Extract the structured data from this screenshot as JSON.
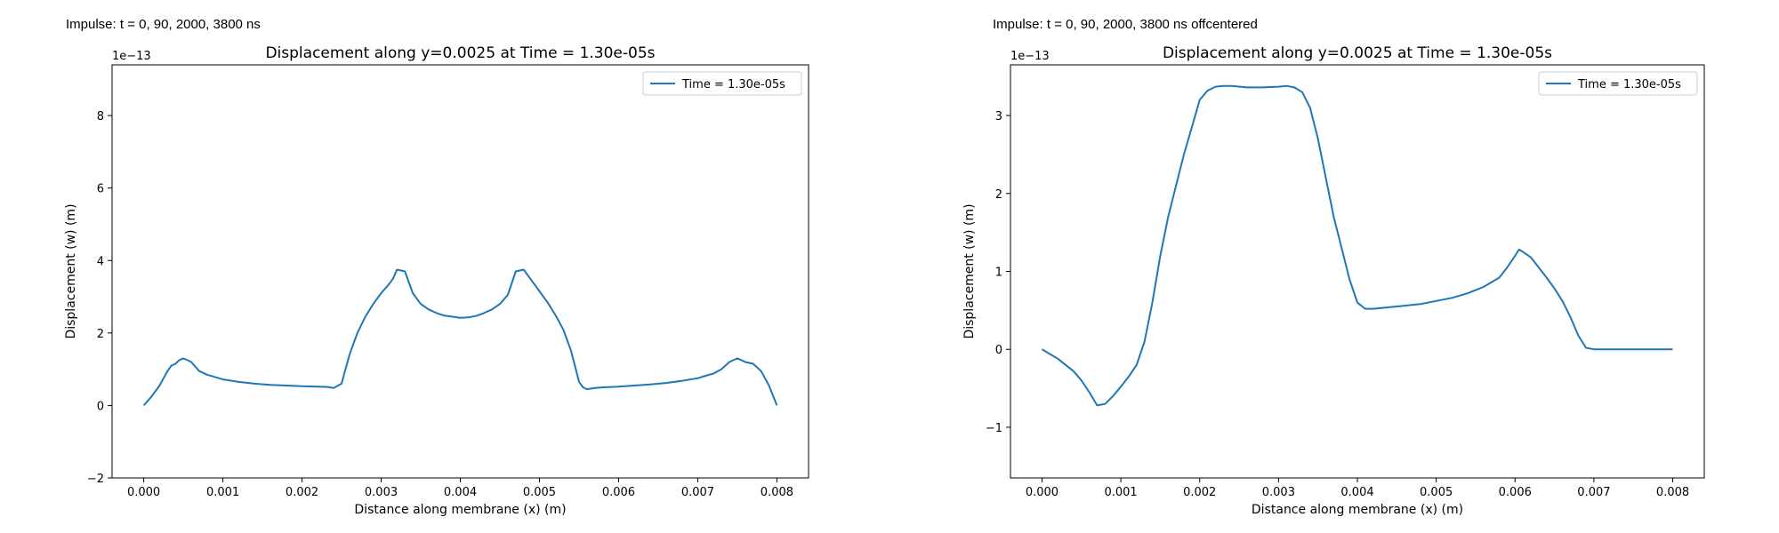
{
  "panels": [
    {
      "caption": "Impulse: t = 0, 90, 2000, 3800 ns"
    },
    {
      "caption": "Impulse: t = 0, 90, 2000, 3800 ns offcentered"
    }
  ],
  "chart_data": [
    {
      "type": "line",
      "title": "Displacement along y=0.0025 at Time = 1.30e-05s",
      "xlabel": "Distance along membrane (x) (m)",
      "ylabel": "Displacement (w) (m)",
      "offset_label": "1e−13",
      "xlim": [
        -0.0004,
        0.0084
      ],
      "ylim": [
        -2,
        9.4
      ],
      "xticks": [
        0.0,
        0.001,
        0.002,
        0.003,
        0.004,
        0.005,
        0.006,
        0.007,
        0.008
      ],
      "xtick_labels": [
        "0.000",
        "0.001",
        "0.002",
        "0.003",
        "0.004",
        "0.005",
        "0.006",
        "0.007",
        "0.008"
      ],
      "yticks": [
        -2,
        0,
        2,
        4,
        6,
        8
      ],
      "ytick_labels": [
        "−2",
        "0",
        "2",
        "4",
        "6",
        "8"
      ],
      "grid": false,
      "legend": "top-right",
      "series": [
        {
          "name": "Time = 1.30e-05s",
          "color": "#1f77b4",
          "x": [
            0.0,
            0.0001,
            0.0002,
            0.0003,
            0.00035,
            0.0004,
            0.00045,
            0.0005,
            0.00055,
            0.0006,
            0.0007,
            0.0008,
            0.001,
            0.0012,
            0.0014,
            0.0016,
            0.0018,
            0.002,
            0.0022,
            0.00232,
            0.00235,
            0.0024,
            0.0025,
            0.0026,
            0.0027,
            0.0028,
            0.0029,
            0.003,
            0.0031,
            0.00315,
            0.0032,
            0.0033,
            0.0034,
            0.0035,
            0.0036,
            0.0037,
            0.0038,
            0.0039,
            0.004,
            0.0041,
            0.0042,
            0.0043,
            0.0044,
            0.0045,
            0.0046,
            0.0047,
            0.0048,
            0.00485,
            0.0049,
            0.005,
            0.0051,
            0.0052,
            0.0053,
            0.0054,
            0.0055,
            0.00555,
            0.0056,
            0.0057,
            0.0058,
            0.006,
            0.0062,
            0.0064,
            0.0066,
            0.0068,
            0.007,
            0.0071,
            0.0072,
            0.0073,
            0.0074,
            0.0075,
            0.00755,
            0.0076,
            0.0077,
            0.0078,
            0.0079,
            0.008
          ],
          "y": [
            0.0,
            0.25,
            0.55,
            0.95,
            1.1,
            1.15,
            1.25,
            1.3,
            1.25,
            1.2,
            0.95,
            0.85,
            0.72,
            0.65,
            0.6,
            0.57,
            0.55,
            0.53,
            0.52,
            0.51,
            0.5,
            0.48,
            0.6,
            1.4,
            2.0,
            2.45,
            2.8,
            3.1,
            3.35,
            3.5,
            3.75,
            3.7,
            3.1,
            2.8,
            2.65,
            2.55,
            2.48,
            2.45,
            2.42,
            2.43,
            2.47,
            2.55,
            2.65,
            2.8,
            3.05,
            3.7,
            3.75,
            3.6,
            3.45,
            3.15,
            2.85,
            2.5,
            2.1,
            1.5,
            0.65,
            0.5,
            0.45,
            0.48,
            0.5,
            0.52,
            0.55,
            0.58,
            0.62,
            0.68,
            0.75,
            0.82,
            0.88,
            1.0,
            1.2,
            1.3,
            1.25,
            1.2,
            1.15,
            0.95,
            0.55,
            0.0
          ]
        }
      ]
    },
    {
      "type": "line",
      "title": "Displacement along y=0.0025 at Time = 1.30e-05s",
      "xlabel": "Distance along membrane (x) (m)",
      "ylabel": "Displacement (w) (m)",
      "offset_label": "1e−13",
      "xlim": [
        -0.0004,
        0.0084
      ],
      "ylim": [
        -1.65,
        3.65
      ],
      "xticks": [
        0.0,
        0.001,
        0.002,
        0.003,
        0.004,
        0.005,
        0.006,
        0.007,
        0.008
      ],
      "xtick_labels": [
        "0.000",
        "0.001",
        "0.002",
        "0.003",
        "0.004",
        "0.005",
        "0.006",
        "0.007",
        "0.008"
      ],
      "yticks": [
        -1,
        0,
        1,
        2,
        3
      ],
      "ytick_labels": [
        "−1",
        "0",
        "1",
        "2",
        "3"
      ],
      "grid": false,
      "legend": "top-right",
      "series": [
        {
          "name": "Time = 1.30e-05s",
          "color": "#1f77b4",
          "x": [
            0.0,
            0.0001,
            0.0002,
            0.0003,
            0.0004,
            0.0005,
            0.0006,
            0.0007,
            0.00075,
            0.0008,
            0.0009,
            0.001,
            0.0011,
            0.0012,
            0.0013,
            0.0014,
            0.0015,
            0.0016,
            0.0017,
            0.0018,
            0.0019,
            0.002,
            0.0021,
            0.0022,
            0.0023,
            0.0024,
            0.0026,
            0.0028,
            0.003,
            0.0031,
            0.0032,
            0.0033,
            0.0034,
            0.0035,
            0.0036,
            0.0037,
            0.0038,
            0.0039,
            0.004,
            0.0041,
            0.0042,
            0.0044,
            0.0046,
            0.0048,
            0.005,
            0.0052,
            0.0054,
            0.0056,
            0.0058,
            0.0059,
            0.006,
            0.00605,
            0.0061,
            0.0062,
            0.0063,
            0.0064,
            0.0065,
            0.0066,
            0.0067,
            0.0068,
            0.0069,
            0.007,
            0.0071,
            0.0073,
            0.0075,
            0.0078,
            0.008
          ],
          "y": [
            0.0,
            -0.06,
            -0.12,
            -0.2,
            -0.28,
            -0.4,
            -0.55,
            -0.72,
            -0.71,
            -0.7,
            -0.6,
            -0.48,
            -0.35,
            -0.2,
            0.1,
            0.6,
            1.2,
            1.7,
            2.1,
            2.5,
            2.85,
            3.2,
            3.32,
            3.37,
            3.38,
            3.38,
            3.36,
            3.36,
            3.37,
            3.38,
            3.36,
            3.3,
            3.1,
            2.7,
            2.2,
            1.7,
            1.3,
            0.9,
            0.6,
            0.52,
            0.52,
            0.54,
            0.56,
            0.58,
            0.62,
            0.66,
            0.72,
            0.8,
            0.92,
            1.05,
            1.2,
            1.28,
            1.25,
            1.18,
            1.05,
            0.92,
            0.78,
            0.62,
            0.42,
            0.18,
            0.02,
            0.0,
            0.0,
            0.0,
            0.0,
            0.0,
            0.0
          ]
        }
      ]
    }
  ]
}
